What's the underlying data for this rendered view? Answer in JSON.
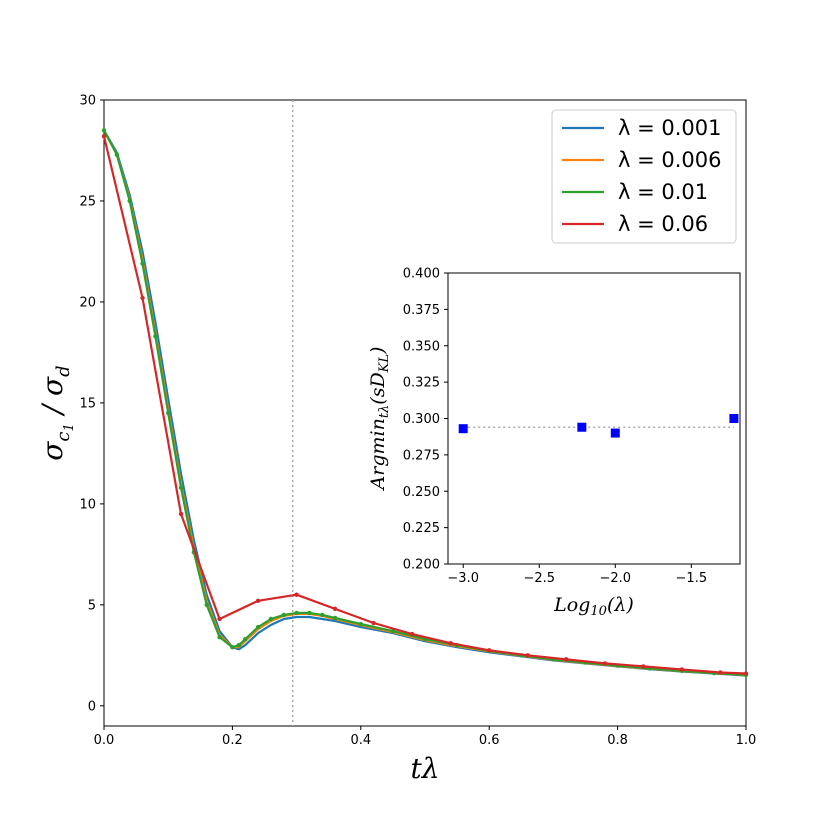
{
  "chart_data": [
    {
      "type": "line",
      "title": "",
      "xlabel": "tλ",
      "ylabel": "σ_{c1} / σ_d",
      "xlim": [
        0,
        1.0
      ],
      "ylim": [
        -1,
        30
      ],
      "xticks": [
        "0.0",
        "0.2",
        "0.4",
        "0.6",
        "0.8",
        "1.0"
      ],
      "yticks": [
        "0",
        "5",
        "10",
        "15",
        "20",
        "25",
        "30"
      ],
      "vline_x": 0.294,
      "legend_position": "top-right",
      "series": [
        {
          "name": "λ = 0.001",
          "color": "#1f77b4",
          "markers": false,
          "x": [
            0,
            0.02,
            0.04,
            0.06,
            0.08,
            0.1,
            0.12,
            0.14,
            0.16,
            0.18,
            0.2,
            0.21,
            0.22,
            0.24,
            0.26,
            0.28,
            0.3,
            0.32,
            0.34,
            0.36,
            0.4,
            0.45,
            0.5,
            0.55,
            0.6,
            0.65,
            0.7,
            0.75,
            0.8,
            0.85,
            0.9,
            0.95,
            1.0
          ],
          "y": [
            28.5,
            27.4,
            25.3,
            22.5,
            19.0,
            15.2,
            11.5,
            8.2,
            5.5,
            3.7,
            2.9,
            2.8,
            3.0,
            3.6,
            4.0,
            4.3,
            4.4,
            4.4,
            4.3,
            4.2,
            3.9,
            3.6,
            3.2,
            2.9,
            2.65,
            2.45,
            2.25,
            2.1,
            1.95,
            1.82,
            1.7,
            1.6,
            1.5
          ]
        },
        {
          "name": "λ = 0.006",
          "color": "#ff7f0e",
          "markers": false,
          "x": [
            0,
            0.02,
            0.04,
            0.06,
            0.08,
            0.1,
            0.12,
            0.14,
            0.16,
            0.18,
            0.2,
            0.21,
            0.22,
            0.24,
            0.26,
            0.28,
            0.3,
            0.32,
            0.34,
            0.36,
            0.4,
            0.45,
            0.5,
            0.55,
            0.6,
            0.65,
            0.7,
            0.75,
            0.8,
            0.85,
            0.9,
            0.95,
            1.0
          ],
          "y": [
            28.5,
            27.3,
            25.1,
            22.1,
            18.5,
            14.7,
            11.0,
            7.8,
            5.2,
            3.5,
            2.9,
            2.9,
            3.2,
            3.8,
            4.2,
            4.45,
            4.55,
            4.55,
            4.45,
            4.3,
            4.0,
            3.65,
            3.25,
            2.95,
            2.7,
            2.48,
            2.28,
            2.12,
            1.97,
            1.84,
            1.72,
            1.61,
            1.52
          ]
        },
        {
          "name": "λ = 0.01",
          "color": "#2ca02c",
          "markers": true,
          "x": [
            0,
            0.02,
            0.04,
            0.06,
            0.08,
            0.1,
            0.12,
            0.14,
            0.16,
            0.18,
            0.2,
            0.21,
            0.22,
            0.24,
            0.26,
            0.28,
            0.3,
            0.32,
            0.34,
            0.36,
            0.4,
            0.45,
            0.5,
            0.55,
            0.6,
            0.65,
            0.7,
            0.75,
            0.8,
            0.85,
            0.9,
            0.95,
            1.0
          ],
          "y": [
            28.5,
            27.3,
            25.0,
            21.9,
            18.3,
            14.5,
            10.8,
            7.6,
            5.0,
            3.4,
            2.9,
            3.0,
            3.3,
            3.9,
            4.3,
            4.5,
            4.6,
            4.6,
            4.5,
            4.35,
            4.05,
            3.7,
            3.3,
            3.0,
            2.72,
            2.5,
            2.3,
            2.14,
            1.99,
            1.85,
            1.73,
            1.62,
            1.53
          ]
        },
        {
          "name": "λ = 0.06",
          "color": "#d62728",
          "markers": true,
          "x": [
            0,
            0.06,
            0.12,
            0.18,
            0.24,
            0.3,
            0.36,
            0.42,
            0.48,
            0.54,
            0.6,
            0.66,
            0.72,
            0.78,
            0.84,
            0.9,
            0.96,
            1.0
          ],
          "y": [
            28.2,
            20.2,
            9.5,
            4.3,
            5.2,
            5.5,
            4.8,
            4.1,
            3.55,
            3.1,
            2.75,
            2.5,
            2.3,
            2.1,
            1.95,
            1.8,
            1.65,
            1.6
          ]
        }
      ]
    },
    {
      "type": "scatter",
      "title": "",
      "xlabel": "Log₁₀(λ)",
      "ylabel": "Argmin_{tλ}(sD_{KL})",
      "xlim": [
        -3.1,
        -1.18
      ],
      "ylim": [
        0.2,
        0.4
      ],
      "xticks": [
        "−3.0",
        "−2.5",
        "−2.0",
        "−1.5"
      ],
      "yticks": [
        "0.200",
        "0.225",
        "0.250",
        "0.275",
        "0.300",
        "0.325",
        "0.350",
        "0.375",
        "0.400"
      ],
      "hline_y": 0.294,
      "color": "#0000ff",
      "x": [
        -3.0,
        -2.22,
        -2.0,
        -1.22
      ],
      "y": [
        0.293,
        0.294,
        0.29,
        0.3
      ]
    }
  ]
}
